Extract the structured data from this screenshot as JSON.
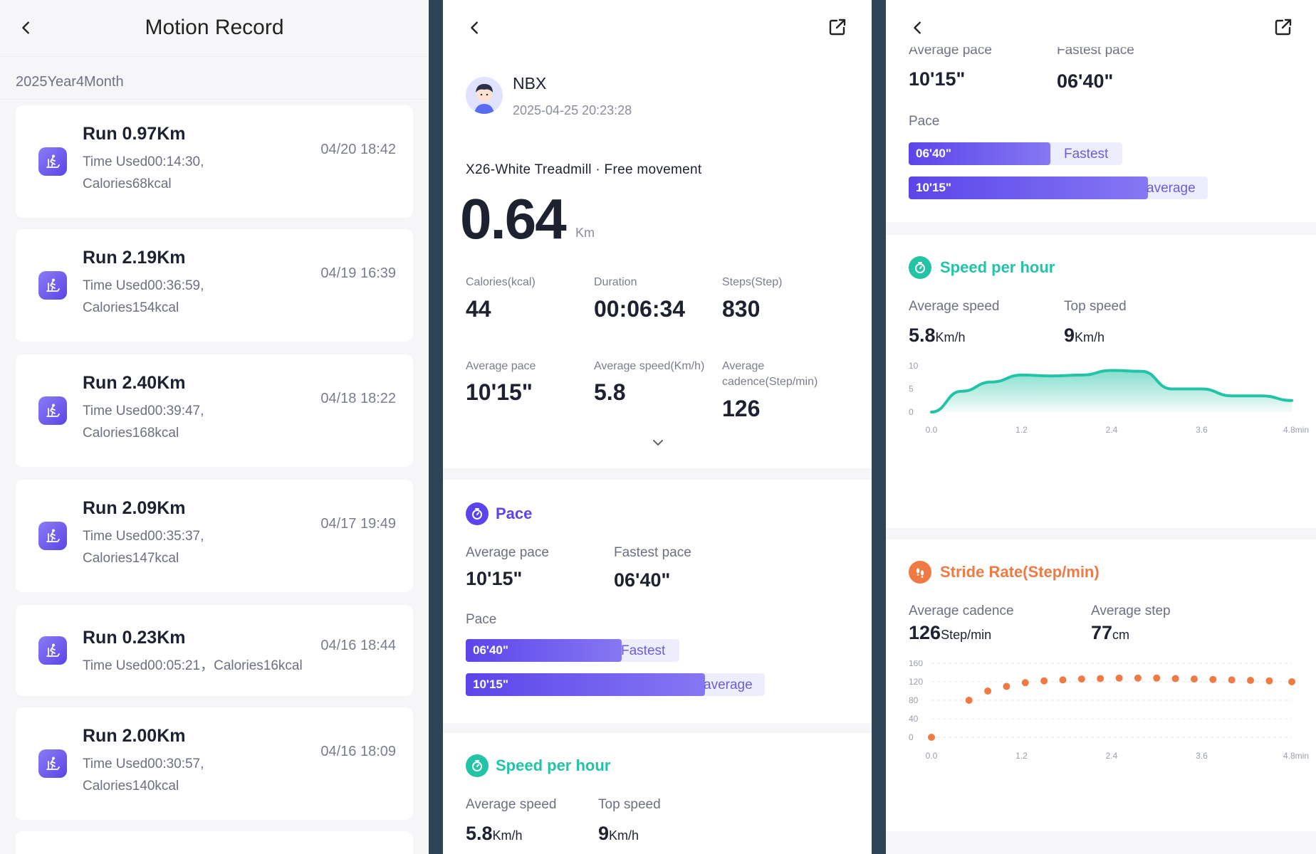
{
  "records_screen": {
    "title": "Motion Record",
    "month": "2025Year4Month",
    "records": [
      {
        "title": "Run 0.97Km",
        "line1": "Time Used00:14:30,",
        "line2": "Calories68kcal",
        "date": "04/20 18:42"
      },
      {
        "title": "Run 2.19Km",
        "line1": "Time Used00:36:59,",
        "line2": "Calories154kcal",
        "date": "04/19 16:39"
      },
      {
        "title": "Run 2.40Km",
        "line1": "Time Used00:39:47,",
        "line2": "Calories168kcal",
        "date": "04/18 18:22"
      },
      {
        "title": "Run 2.09Km",
        "line1": "Time Used00:35:37,",
        "line2": "Calories147kcal",
        "date": "04/17 19:49"
      },
      {
        "title": "Run 0.23Km",
        "line1": "Time Used00:05:21，Calories16kcal",
        "line2": "",
        "date": "04/16 18:44"
      },
      {
        "title": "Run 2.00Km",
        "line1": "Time Used00:30:57,",
        "line2": "Calories140kcal",
        "date": "04/16 18:09"
      }
    ]
  },
  "detail_screen": {
    "user": {
      "name": "NBX",
      "datetime": "2025-04-25 20:23:28"
    },
    "device": "X26-White Treadmill · Free movement",
    "distance": {
      "value": "0.64",
      "unit": "Km"
    },
    "stats": [
      {
        "label": "Calories(kcal)",
        "value": "44"
      },
      {
        "label": "Duration",
        "value": "00:06:34"
      },
      {
        "label": "Steps(Step)",
        "value": "830"
      },
      {
        "label": "Average pace",
        "value": "10'15\""
      },
      {
        "label": "Average speed(Km/h)",
        "value": "5.8"
      },
      {
        "label_line1": "Average",
        "label_line2": "cadence(Step/min)",
        "value": "126"
      }
    ],
    "pace": {
      "title": "Pace",
      "avg_label": "Average pace",
      "avg_value": "10'15\"",
      "fast_label": "Fastest pace",
      "fast_value": "06'40\"",
      "bar_title": "Pace",
      "bars": [
        {
          "value": "06'40\"",
          "tag": "Fastest",
          "fraction": 0.55
        },
        {
          "value": "10'15\"",
          "tag": "average",
          "fraction": 0.77
        }
      ]
    },
    "speed": {
      "title": "Speed per hour",
      "avg_label": "Average speed",
      "avg_value": "5.8",
      "avg_unit": "Km/h",
      "top_label": "Top speed",
      "top_value": "9",
      "top_unit": "Km/h"
    }
  },
  "chart_screen": {
    "pace_top": {
      "avg_label": "Average pace",
      "avg_value": "10'15\"",
      "fast_label": "Fastest pace",
      "fast_value": "06'40\"",
      "bar_title": "Pace",
      "bars": [
        {
          "value": "06'40\"",
          "tag": "Fastest",
          "fraction": 0.5
        },
        {
          "value": "10'15\"",
          "tag": "average",
          "fraction": 0.77
        }
      ]
    },
    "speed": {
      "title": "Speed per hour",
      "avg_label": "Average speed",
      "avg_value": "5.8",
      "avg_unit": "Km/h",
      "top_label": "Top speed",
      "top_value": "9",
      "top_unit": "Km/h"
    },
    "stride": {
      "title": "Stride Rate(Step/min)",
      "avg_cad_label": "Average cadence",
      "avg_cad_value": "126",
      "avg_cad_unit": "Step/min",
      "avg_step_label": "Average step",
      "avg_step_value": "77",
      "avg_step_unit": "cm"
    },
    "colors": {
      "accent_purple": "#5b45ea",
      "speed_teal": "#22c3a6",
      "stride_orange": "#f07a44"
    }
  },
  "chart_data": [
    {
      "type": "area",
      "x": [
        0.0,
        0.4,
        0.8,
        1.2,
        1.6,
        2.0,
        2.4,
        2.8,
        3.2,
        3.6,
        4.0,
        4.4,
        4.8
      ],
      "series": [
        {
          "values": [
            0,
            4.5,
            6.5,
            8.0,
            7.8,
            8.0,
            9.0,
            8.8,
            5.0,
            5.0,
            3.5,
            3.5,
            2.5
          ]
        }
      ],
      "x_ticks": [
        "0.0",
        "1.2",
        "2.4",
        "3.6",
        "4.8min"
      ],
      "y_ticks": [
        "0",
        "5",
        "10"
      ],
      "ylim": [
        0,
        10
      ],
      "xlim": [
        0,
        4.8
      ]
    },
    {
      "type": "scatter",
      "x": [
        0.0,
        0.5,
        0.75,
        1.0,
        1.25,
        1.5,
        1.75,
        2.0,
        2.25,
        2.5,
        2.75,
        3.0,
        3.25,
        3.5,
        3.75,
        4.0,
        4.25,
        4.5,
        4.8
      ],
      "series": [
        {
          "values": [
            0,
            80,
            100,
            110,
            118,
            122,
            124,
            126,
            127,
            128,
            128,
            128,
            127,
            126,
            125,
            124,
            123,
            122,
            120
          ]
        }
      ],
      "x_ticks": [
        "0.0",
        "1.2",
        "2.4",
        "3.6",
        "4.8min"
      ],
      "y_ticks": [
        "0",
        "40",
        "80",
        "120",
        "160"
      ],
      "ylim": [
        0,
        160
      ],
      "xlim": [
        0,
        4.8
      ]
    }
  ]
}
